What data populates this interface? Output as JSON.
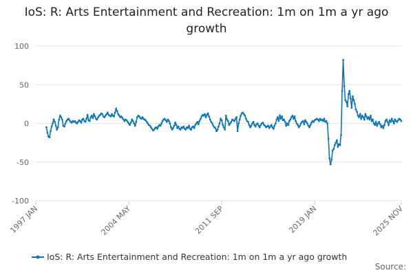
{
  "chart_data": {
    "type": "line",
    "title": "IoS: R: Arts Entertainment and Recreation: 1m on 1m a yr ago growth",
    "source": "Source:",
    "categories": [
      "1997 JAN",
      null,
      null,
      null,
      null,
      null,
      null,
      null,
      null,
      null,
      null,
      null,
      null,
      null,
      null,
      null,
      null,
      null,
      null,
      null,
      null,
      null,
      null,
      null,
      null,
      null,
      null,
      null,
      null,
      null,
      null,
      null,
      null,
      null,
      null,
      null,
      null,
      null,
      null,
      null,
      null,
      null,
      null,
      null,
      null,
      null,
      null,
      null,
      null,
      null,
      null,
      null,
      null,
      null,
      null,
      null,
      null,
      null,
      null,
      null,
      null,
      null,
      null,
      null,
      null,
      null,
      null,
      null,
      null,
      null,
      null,
      null,
      null,
      null,
      null,
      null,
      null,
      null,
      null,
      null,
      null,
      null,
      null,
      null,
      null,
      null,
      null,
      null,
      "2004 MAY",
      null,
      null,
      null,
      null,
      null,
      null,
      null,
      null,
      null,
      null,
      null,
      null,
      null,
      null,
      null,
      null,
      null,
      null,
      null,
      null,
      null,
      null,
      null,
      null,
      null,
      null,
      null,
      null,
      null,
      null,
      null,
      null,
      null,
      null,
      null,
      null,
      null,
      null,
      null,
      null,
      null,
      null,
      null,
      null,
      null,
      null,
      null,
      null,
      null,
      null,
      null,
      null,
      null,
      null,
      null,
      null,
      null,
      null,
      null,
      null,
      null,
      null,
      null,
      null,
      null,
      null,
      null,
      null,
      null,
      null,
      null,
      null,
      null,
      null,
      null,
      null,
      null,
      null,
      null,
      null,
      null,
      null,
      null,
      null,
      null,
      null,
      null,
      "2011 SEP",
      null,
      null,
      null,
      null,
      null,
      null,
      null,
      null,
      null,
      null,
      null,
      null,
      null,
      null,
      null,
      null,
      null,
      null,
      null,
      null,
      null,
      null,
      null,
      null,
      null,
      null,
      null,
      null,
      null,
      null,
      null,
      null,
      null,
      null,
      null,
      null,
      null,
      null,
      null,
      null,
      null,
      null,
      null,
      null,
      null,
      null,
      null,
      null,
      null,
      null,
      null,
      null,
      null,
      null,
      null,
      null,
      null,
      null,
      null,
      null,
      null,
      null,
      null,
      null,
      null,
      null,
      null,
      null,
      null,
      null,
      null,
      null,
      null,
      null,
      null,
      null,
      null,
      null,
      null,
      null,
      null,
      null,
      null,
      null,
      null,
      null,
      null,
      "2019 JAN",
      null,
      null,
      null,
      null,
      null,
      null,
      null,
      null,
      null,
      null,
      null,
      null,
      null,
      null,
      null,
      null,
      null,
      null,
      null,
      null,
      null,
      null,
      null,
      null,
      null,
      null,
      null,
      null,
      null,
      null,
      null,
      null,
      null,
      null,
      null,
      null,
      null,
      null,
      null,
      null,
      null,
      null,
      null,
      null,
      null,
      null,
      null,
      null,
      null,
      null,
      null,
      null,
      null,
      null,
      null,
      null,
      null,
      null,
      null,
      null,
      null,
      null,
      null,
      null,
      null,
      null,
      null,
      null,
      null,
      null,
      null,
      null,
      null,
      null,
      null,
      null,
      null,
      null,
      null,
      null,
      null,
      "2025 NOV"
    ],
    "series": [
      {
        "name": "IoS: R: Arts Entertainment and Recreation: 1m on 1m a yr ago growth",
        "color": "#0b74b4",
        "values": [
          null,
          null,
          null,
          null,
          null,
          null,
          null,
          null,
          null,
          null,
          -5,
          -12,
          -17,
          -18,
          -10,
          -4,
          0,
          5,
          2,
          -3,
          -8,
          -5,
          5,
          10,
          8,
          5,
          -3,
          -4,
          0,
          3,
          5,
          6,
          4,
          2,
          1,
          3,
          2,
          3,
          1,
          0,
          2,
          4,
          3,
          1,
          5,
          6,
          3,
          2,
          6,
          11,
          4,
          3,
          8,
          10,
          7,
          12,
          9,
          6,
          5,
          8,
          10,
          11,
          13,
          12,
          9,
          8,
          10,
          12,
          14,
          11,
          10,
          9,
          12,
          10,
          9,
          14,
          19,
          16,
          12,
          10,
          8,
          9,
          7,
          5,
          3,
          5,
          4,
          2,
          0,
          -2,
          1,
          5,
          3,
          0,
          -3,
          2,
          8,
          10,
          9,
          7,
          6,
          8,
          6,
          5,
          4,
          2,
          0,
          -2,
          -3,
          -5,
          -7,
          -9,
          -8,
          -6,
          -5,
          -7,
          -4,
          -2,
          -3,
          0,
          3,
          5,
          6,
          4,
          2,
          5,
          3,
          0,
          -5,
          -8,
          -6,
          -3,
          1,
          -2,
          -6,
          -4,
          -7,
          -8,
          -5,
          -6,
          -4,
          -7,
          -8,
          -5,
          -6,
          -3,
          -7,
          -8,
          -5,
          -4,
          -6,
          -2,
          0,
          2,
          -1,
          3,
          6,
          9,
          11,
          10,
          12,
          8,
          11,
          13,
          9,
          5,
          2,
          0,
          -3,
          -5,
          -6,
          -10,
          -8,
          -4,
          0,
          6,
          4,
          -2,
          -5,
          -8,
          10,
          5,
          3,
          -2,
          0,
          2,
          5,
          4,
          3,
          6,
          8,
          -10,
          0,
          5,
          10,
          13,
          14,
          12,
          10,
          6,
          3,
          2,
          -2,
          -5,
          -3,
          0,
          2,
          -2,
          -4,
          -1,
          0,
          -3,
          -5,
          -2,
          0,
          1,
          -2,
          -3,
          -5,
          -4,
          -3,
          -6,
          -4,
          -2,
          -5,
          -7,
          -3,
          0,
          5,
          8,
          3,
          10,
          6,
          9,
          4,
          5,
          2,
          -3,
          0,
          -2,
          3,
          5,
          8,
          10,
          6,
          9,
          3,
          0,
          -2,
          -5,
          -3,
          0,
          2,
          3,
          -1,
          4,
          2,
          0,
          -3,
          -5,
          -2,
          1,
          3,
          2,
          4,
          5,
          6,
          5,
          3,
          6,
          4,
          5,
          3,
          6,
          2,
          3,
          0,
          -20,
          -45,
          -53,
          -47,
          -35,
          -33,
          -28,
          -25,
          -22,
          -30,
          -27,
          -28,
          -15,
          42,
          82,
          48,
          30,
          28,
          22,
          38,
          42,
          32,
          20,
          35,
          30,
          25,
          18,
          15,
          10,
          8,
          12,
          6,
          10,
          8,
          5,
          12,
          9,
          6,
          8,
          5,
          10,
          3,
          5,
          0,
          -2,
          2,
          -3,
          0,
          2,
          -1,
          -5,
          -3,
          -6,
          -2,
          3,
          5,
          2,
          -2,
          4,
          2,
          6,
          3,
          0,
          5,
          3,
          2,
          4,
          6,
          5,
          3
        ]
      }
    ],
    "ylim": [
      -100,
      100
    ],
    "yticks": [
      -100,
      -50,
      0,
      50,
      100
    ],
    "grid": true,
    "legend": "bottom"
  }
}
